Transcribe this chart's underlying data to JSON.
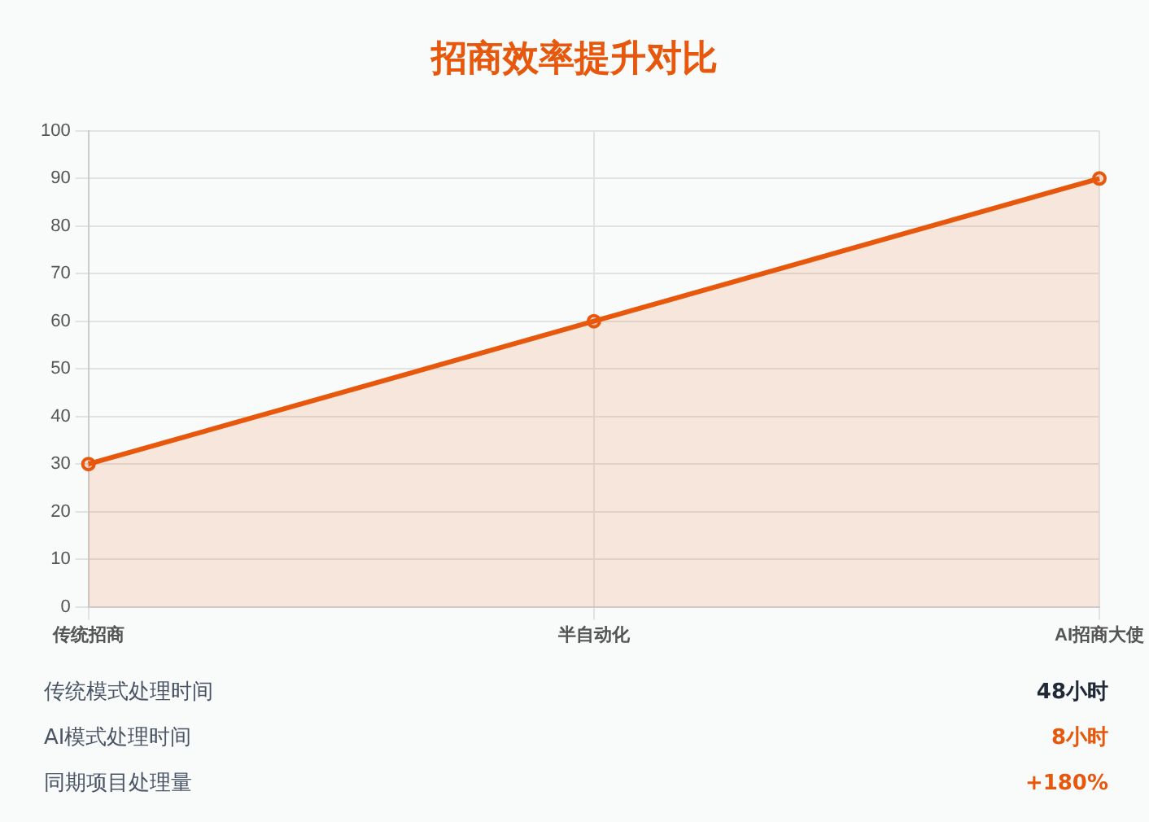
{
  "chart_data": {
    "type": "area",
    "title": "招商效率提升对比",
    "categories": [
      "传统招商",
      "半自动化",
      "AI招商大使"
    ],
    "series": [
      {
        "color": "#e8580c",
        "values": [
          30,
          60,
          90
        ]
      }
    ],
    "ylim": [
      0,
      100
    ],
    "yticks": [
      0,
      10,
      20,
      30,
      40,
      50,
      60,
      70,
      80,
      90,
      100
    ],
    "grid": true,
    "legend": false,
    "marker": "circle",
    "annotations": [
      "传统模式处理时间",
      "48小时",
      "AI模式处理时间",
      "8小时",
      "同期项目处理量",
      "+180%"
    ]
  }
}
